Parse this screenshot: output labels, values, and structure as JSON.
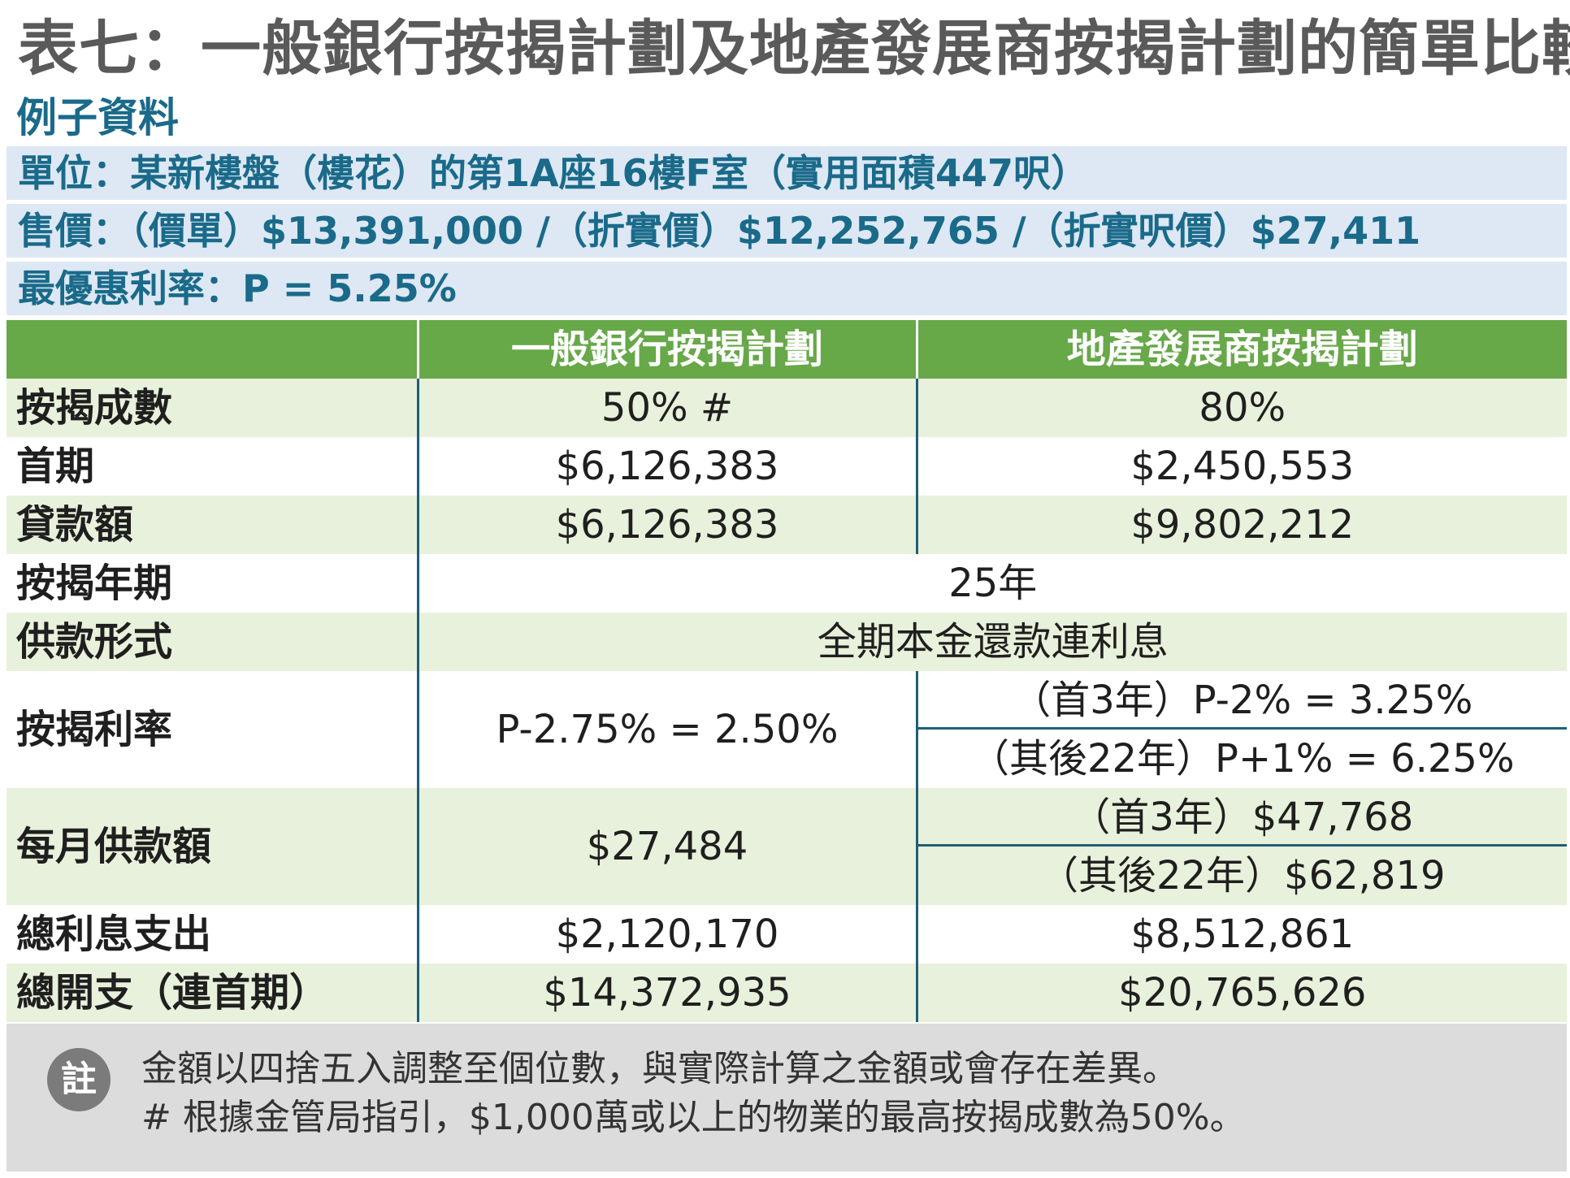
{
  "title": "表七：一般銀行按揭計劃及地產發展商按揭計劃的簡單比較",
  "section_label": "例子資料",
  "info_lines": [
    "單位：某新樓盤（樓花）的第1A座16樓F室（實用面積447呎）",
    "售價：（價單）$13,391,000 /（折實價）$12,252,765 /（折實呎價）$27,411",
    "最優惠利率：P = 5.25%"
  ],
  "table": {
    "headers": [
      "",
      "一般銀行按揭計劃",
      "地產發展商按揭計劃"
    ],
    "rows": {
      "ltv": {
        "label": "按揭成數",
        "bank": "50% #",
        "dev": "80%"
      },
      "down": {
        "label": "首期",
        "bank": "$6,126,383",
        "dev": "$2,450,553"
      },
      "loan": {
        "label": "貸款額",
        "bank": "$6,126,383",
        "dev": "$9,802,212"
      },
      "term": {
        "label": "按揭年期",
        "shared": "25年"
      },
      "repay": {
        "label": "供款形式",
        "shared": "全期本金還款連利息"
      },
      "rate": {
        "label": "按揭利率",
        "bank": "P-2.75% = 2.50%",
        "dev_first": "（首3年）P-2% = 3.25%",
        "dev_after": "（其後22年）P+1% = 6.25%"
      },
      "monthly": {
        "label": "每月供款額",
        "bank": "$27,484",
        "dev_first": "（首3年）$47,768",
        "dev_after": "（其後22年）$62,819"
      },
      "interest": {
        "label": "總利息支出",
        "bank": "$2,120,170",
        "dev": "$8,512,861"
      },
      "total": {
        "label": "總開支（連首期）",
        "bank": "$14,372,935",
        "dev": "$20,765,626"
      }
    }
  },
  "note": {
    "badge": "註",
    "lines": [
      "金額以四捨五入調整至個位數，與實際計算之金額或會存在差異。",
      "# 根據金管局指引，$1,000萬或以上的物業的最高按揭成數為50%。"
    ]
  },
  "colors": {
    "header_green": "#67a849",
    "row_green": "#e8f1db",
    "info_blue_bg": "#dde8f4",
    "accent_blue": "#1a6a8a",
    "note_gray": "#dcdcdc"
  }
}
